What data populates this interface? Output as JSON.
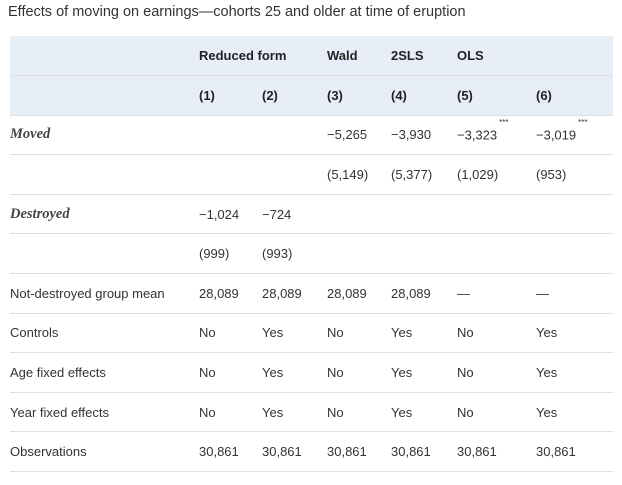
{
  "caption": "Effects of moving on earnings—cohorts 25 and older at time of eruption",
  "header": {
    "group_reduced_form": "Reduced form",
    "wald": "Wald",
    "two_sls": "2SLS",
    "ols": "OLS",
    "col_numbers": [
      "(1)",
      "(2)",
      "(3)",
      "(4)",
      "(5)",
      "(6)"
    ]
  },
  "rows": {
    "moved": {
      "label": "Moved",
      "coef": [
        "",
        "",
        "−5,265",
        "−3,930",
        "−3,323",
        "−3,019"
      ],
      "stars": [
        "",
        "",
        "",
        "",
        "***",
        "***"
      ],
      "se": [
        "",
        "",
        "(5,149)",
        "(5,377)",
        "(1,029)",
        "(953)"
      ]
    },
    "destroyed": {
      "label": "Destroyed",
      "coef": [
        "−1,024",
        "−724",
        "",
        "",
        "",
        ""
      ],
      "se": [
        "(999)",
        "(993)",
        "",
        "",
        "",
        ""
      ]
    },
    "not_destroyed_mean": {
      "label": "Not-destroyed group mean",
      "values": [
        "28,089",
        "28,089",
        "28,089",
        "28,089",
        "—",
        "—"
      ]
    },
    "controls": {
      "label": "Controls",
      "values": [
        "No",
        "Yes",
        "No",
        "Yes",
        "No",
        "Yes"
      ]
    },
    "age_fe": {
      "label": "Age fixed effects",
      "values": [
        "No",
        "Yes",
        "No",
        "Yes",
        "No",
        "Yes"
      ]
    },
    "year_fe": {
      "label": "Year fixed effects",
      "values": [
        "No",
        "Yes",
        "No",
        "Yes",
        "No",
        "Yes"
      ]
    },
    "observations": {
      "label": "Observations",
      "values": [
        "30,861",
        "30,861",
        "30,861",
        "30,861",
        "30,861",
        "30,861"
      ]
    }
  },
  "colors": {
    "header_bg": "#e7eef7",
    "rule": "#dcdfe3",
    "text": "#333333"
  }
}
